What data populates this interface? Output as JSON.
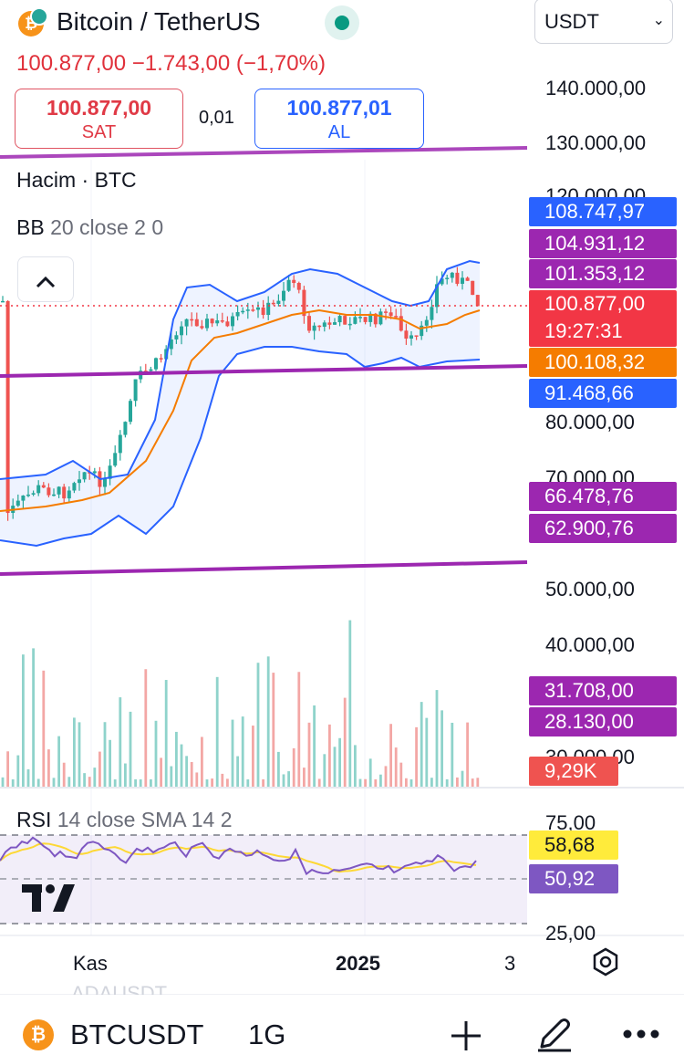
{
  "header": {
    "title": "Bitcoin / TetherUS",
    "currency": "USDT",
    "price_change": "100.877,00  −1.743,00 (−1,70%)",
    "sell_price": "100.877,00",
    "sell_label": "SAT",
    "spread": "0,01",
    "buy_price": "100.877,01",
    "buy_label": "AL",
    "collapse_icon": "chevron-up-icon"
  },
  "legend": {
    "volume": "Hacim · BTC",
    "bb_name": "BB",
    "bb_params": "20 close 2 0",
    "rsi_name": "RSI",
    "rsi_params": "14 close SMA 14 2"
  },
  "price_axis": {
    "ticks": [
      "140.000,00",
      "130.000,00",
      "120.000,00",
      "80.000,00",
      "70.000,00",
      "50.000,00",
      "40.000,00",
      "30.000,00"
    ],
    "tags": [
      {
        "text": "108.747,97",
        "color": "#2962ff"
      },
      {
        "text": "104.931,12",
        "color": "#9c27b0"
      },
      {
        "text": "101.353,12",
        "color": "#9c27b0"
      },
      {
        "text": "100.877,00",
        "color": "#f23645"
      },
      {
        "text": "19:27:31",
        "color": "#f23645"
      },
      {
        "text": "100.108,32",
        "color": "#f57c00"
      },
      {
        "text": "91.468,66",
        "color": "#2962ff"
      },
      {
        "text": "66.478,76",
        "color": "#9c27b0"
      },
      {
        "text": "62.900,76",
        "color": "#9c27b0"
      },
      {
        "text": "31.708,00",
        "color": "#9c27b0"
      },
      {
        "text": "28.130,00",
        "color": "#9c27b0"
      },
      {
        "text": "9,29K",
        "color": "#ef5350"
      }
    ]
  },
  "rsi_axis": {
    "ticks": [
      "75,00",
      "25,00"
    ],
    "tag_sma": {
      "text": "58,68",
      "color": "#ffeb3b"
    },
    "tag_rsi": {
      "text": "50,92",
      "color": "#7e57c2"
    }
  },
  "time_axis": {
    "labels": [
      "Kas",
      "2025",
      "3"
    ]
  },
  "footer": {
    "ghost": "ADAUSDT",
    "symbol": "BTCUSDT",
    "interval": "1G"
  },
  "colors": {
    "up": "#26a69a",
    "down": "#ef5350",
    "bb_band": "#2962ff",
    "bb_basis": "#f57c00",
    "trendline": "#9c27b0",
    "rsi": "#7e57c2",
    "rsi_sma": "#fdd835"
  }
}
